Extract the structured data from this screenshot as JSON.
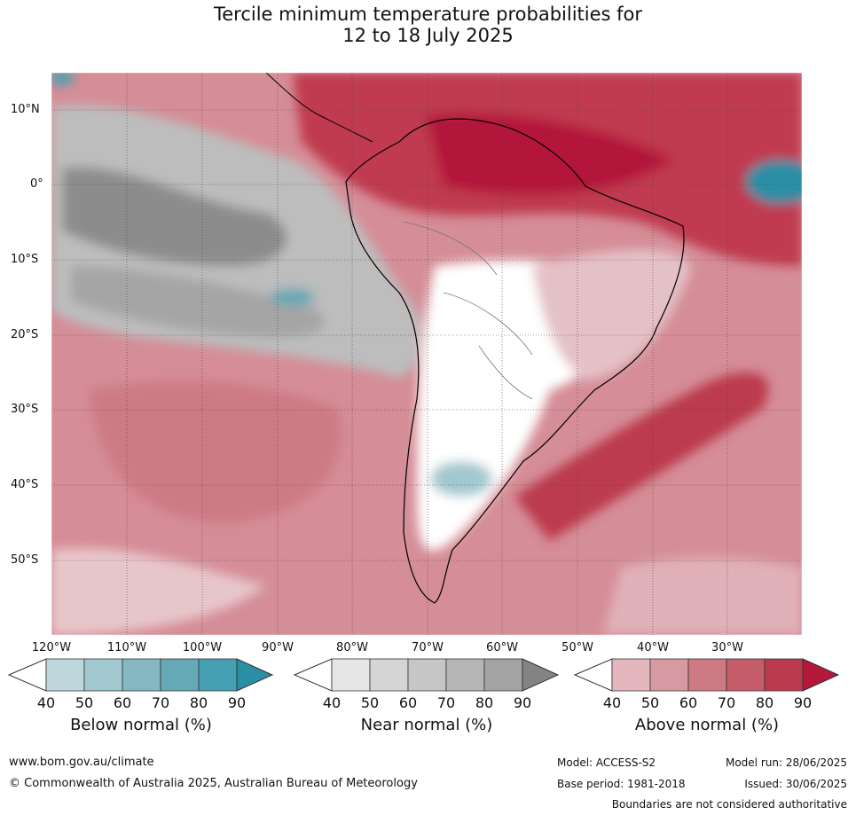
{
  "title": {
    "line1": "Tercile minimum temperature probabilities for",
    "line2": "12 to 18 July 2025"
  },
  "lat_labels": [
    "10°N",
    "0°",
    "10°S",
    "20°S",
    "30°S",
    "40°S",
    "50°S"
  ],
  "lon_labels": [
    "120°W",
    "110°W",
    "100°W",
    "90°W",
    "80°W",
    "70°W",
    "60°W",
    "50°W",
    "40°W",
    "30°W"
  ],
  "colorbars": [
    {
      "title": "Below normal (%)",
      "ticks": [
        "40",
        "50",
        "60",
        "70",
        "80",
        "90"
      ],
      "colors": [
        "#bdd7dd",
        "#a2c8cf",
        "#85b8c2",
        "#65a8b6",
        "#44a0b2",
        "#2a8ea5"
      ]
    },
    {
      "title": "Near normal (%)",
      "ticks": [
        "40",
        "50",
        "60",
        "70",
        "80",
        "90"
      ],
      "colors": [
        "#e6e6e6",
        "#d5d5d5",
        "#c6c6c6",
        "#b5b5b5",
        "#a3a3a3",
        "#848484"
      ]
    },
    {
      "title": "Above normal (%)",
      "ticks": [
        "40",
        "50",
        "60",
        "70",
        "80",
        "90"
      ],
      "colors": [
        "#e3b7bd",
        "#d89aa2",
        "#cd7a85",
        "#c55c69",
        "#bc3a4d",
        "#b4183a"
      ]
    }
  ],
  "footer": {
    "website": "www.bom.gov.au/climate",
    "copyright": "© Commonwealth of Australia 2025, Australian Bureau of Meteorology",
    "model": "Model: ACCESS-S2",
    "model_run": "Model run: 28/06/2025",
    "base_period": "Base period: 1981-2018",
    "issued": "Issued: 30/06/2025",
    "boundaries_note": "Boundaries are not considered authoritative"
  }
}
